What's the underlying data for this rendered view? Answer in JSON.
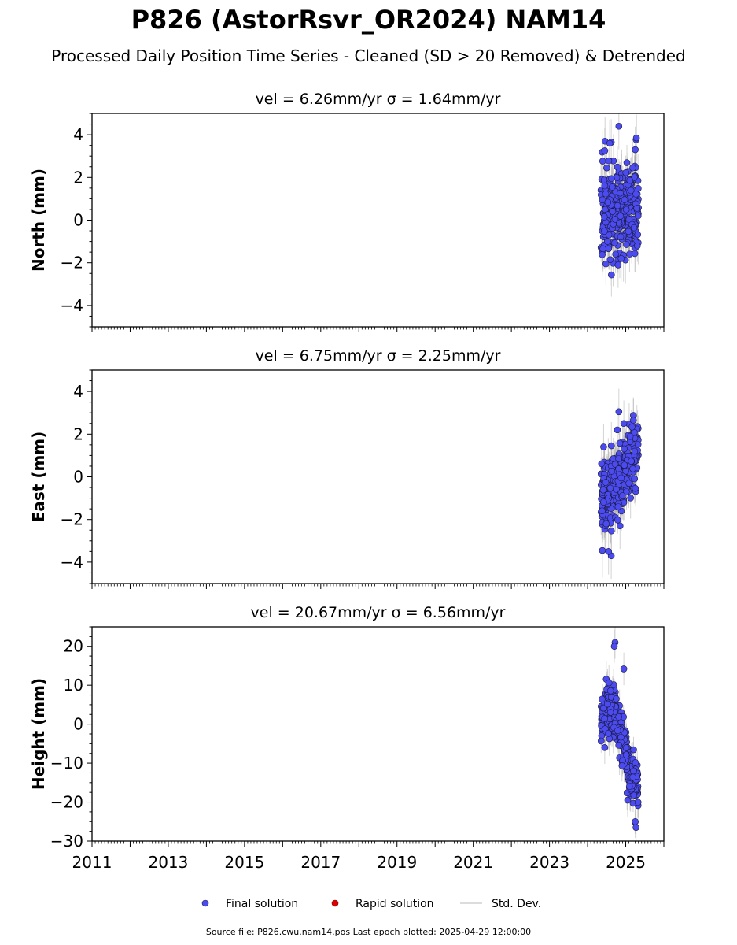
{
  "figure": {
    "title": "P826 (AstorRsvr_OR2024) NAM14",
    "subtitle": "Processed Daily Position Time Series - Cleaned (SD > 20 Removed) & Detrended",
    "footer": "Source file: P826.cwu.nam14.pos  Last epoch plotted: 2025-04-29 12:00:00"
  },
  "legend": {
    "final": "Final solution",
    "rapid": "Rapid solution",
    "stddev": "Std. Dev."
  },
  "colors": {
    "final": "#4b4bf0",
    "rapid": "#e00000",
    "stddev": "#a0a0a0",
    "marker_edge": "#1a1a40"
  },
  "chart_data": [
    {
      "type": "scatter",
      "title": "vel = 6.26mm/yr   σ = 1.64mm/yr",
      "ylabel": "North (mm)",
      "xlim": [
        2011,
        2026
      ],
      "ylim": [
        -5,
        5
      ],
      "yticks": [
        -4,
        -2,
        0,
        2,
        4
      ],
      "yticklabels": [
        "−4",
        "−2",
        "0",
        "2",
        "4"
      ],
      "xticks": [
        2011,
        2013,
        2015,
        2017,
        2019,
        2021,
        2023,
        2025
      ],
      "x_range": [
        2024.35,
        2025.33
      ],
      "trend": [
        0.2,
        0.6
      ],
      "noise": 1.05,
      "sd": 0.9,
      "n": 320,
      "outliers": [
        [
          2024.62,
          3.65
        ],
        [
          2024.58,
          3.6
        ],
        [
          2024.82,
          4.4
        ],
        [
          2025.28,
          3.85
        ],
        [
          2024.45,
          3.25
        ],
        [
          2025.25,
          3.3
        ],
        [
          2024.88,
          -1.8
        ],
        [
          2024.8,
          -2.1
        ],
        [
          2024.52,
          -1.0
        ]
      ]
    },
    {
      "type": "scatter",
      "title": "vel = 6.75mm/yr   σ = 2.25mm/yr",
      "ylabel": "East (mm)",
      "xlim": [
        2011,
        2026
      ],
      "ylim": [
        -5,
        5
      ],
      "yticks": [
        -4,
        -2,
        0,
        2,
        4
      ],
      "yticklabels": [
        "−4",
        "−2",
        "0",
        "2",
        "4"
      ],
      "xticks": [
        2011,
        2013,
        2015,
        2017,
        2019,
        2021,
        2023,
        2025
      ],
      "x_range": [
        2024.35,
        2025.33
      ],
      "trend": [
        -1.2,
        1.3
      ],
      "noise": 0.8,
      "sd": 0.9,
      "n": 320,
      "outliers": [
        [
          2024.62,
          -3.7
        ],
        [
          2024.55,
          -3.5
        ],
        [
          2024.82,
          3.05
        ],
        [
          2024.78,
          2.2
        ],
        [
          2024.95,
          2.5
        ],
        [
          2025.2,
          2.65
        ],
        [
          2024.42,
          1.4
        ],
        [
          2024.85,
          -2.3
        ]
      ]
    },
    {
      "type": "scatter",
      "title": "vel = 20.67mm/yr   σ = 6.56mm/yr",
      "ylabel": "Height (mm)",
      "xlim": [
        2011,
        2026
      ],
      "ylim": [
        -30,
        25
      ],
      "yticks": [
        -30,
        -20,
        -10,
        0,
        10,
        20
      ],
      "yticklabels": [
        "−30",
        "−20",
        "−10",
        "0",
        "10",
        "20"
      ],
      "xticks": [
        2011,
        2013,
        2015,
        2017,
        2019,
        2021,
        2023,
        2025
      ],
      "xticklabels": [
        "2011",
        "2013",
        "2015",
        "2017",
        "2019",
        "2021",
        "2023",
        "2025"
      ],
      "x_range": [
        2024.35,
        2025.33
      ],
      "trend": [
        2.0,
        -17.0
      ],
      "bump": 8,
      "noise": 3.2,
      "sd": 3.5,
      "n": 320,
      "outliers": [
        [
          2024.72,
          21.0
        ],
        [
          2024.7,
          20.0
        ],
        [
          2024.95,
          14.2
        ],
        [
          2025.27,
          -26.5
        ],
        [
          2025.25,
          -25.0
        ],
        [
          2024.45,
          -6.0
        ],
        [
          2025.05,
          -19.5
        ]
      ]
    }
  ]
}
